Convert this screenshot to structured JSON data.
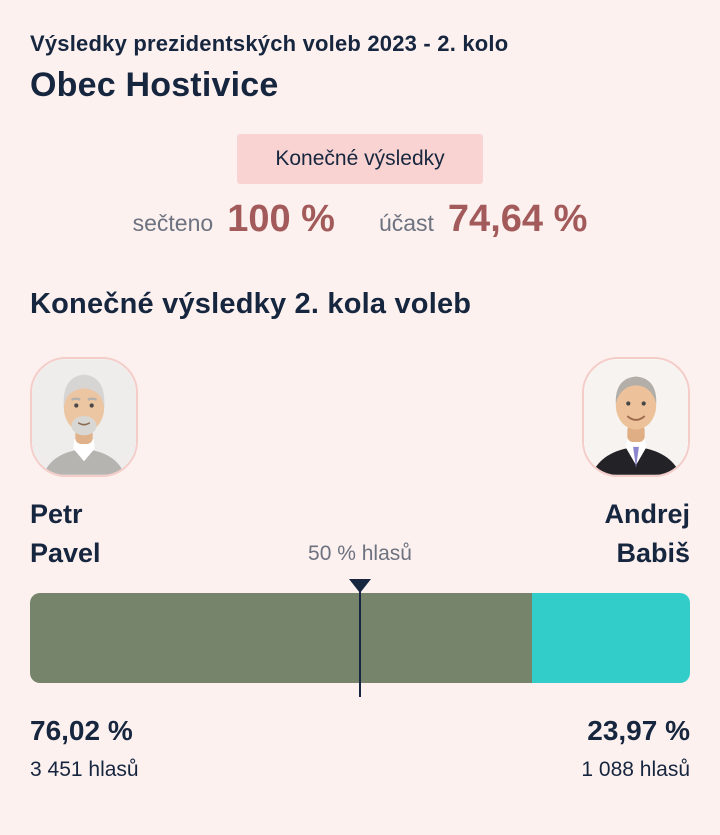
{
  "colors": {
    "page_bg": "#fcf1ef",
    "navy_text": "#17263f",
    "gray_label": "#6d7280",
    "maroon_value": "#a25a5a",
    "badge_bg": "#f9d3d1",
    "pavel_bar": "#75846b",
    "babis_bar": "#33cdc9",
    "avatar_border": "#f4cdc9"
  },
  "header": {
    "subtitle": "Výsledky prezidentských voleb 2023 - 2. kolo",
    "municipality": "Obec Hostivice",
    "badge_label": "Konečné výsledky"
  },
  "stats": {
    "counted_label": "sečteno",
    "counted_value": "100 %",
    "turnout_label": "účast",
    "turnout_value": "74,64 %"
  },
  "results": {
    "heading": "Konečné výsledky 2. kola voleb",
    "threshold_label": "50 % hlasů",
    "candidates": [
      {
        "first_name": "Petr",
        "last_name": "Pavel",
        "percent_label": "76,02 %",
        "votes_label": "3 451 hlasů",
        "share": 76.02,
        "color": "#75846b"
      },
      {
        "first_name": "Andrej",
        "last_name": "Babiš",
        "percent_label": "23,97 %",
        "votes_label": "1 088 hlasů",
        "share": 23.97,
        "color": "#33cdc9"
      }
    ]
  },
  "chart_data": {
    "type": "bar",
    "orientation": "horizontal-stacked",
    "title": "Konečné výsledky 2. kola voleb",
    "categories": [
      "Petr Pavel",
      "Andrej Babiš"
    ],
    "values": [
      76.02,
      23.97
    ],
    "votes": [
      3451,
      1088
    ],
    "value_labels": [
      "76,02 %",
      "23,97 %"
    ],
    "votes_labels": [
      "3 451 hlasů",
      "1 088 hlasů"
    ],
    "colors": [
      "#75846b",
      "#33cdc9"
    ],
    "threshold_annotation": "50 % hlasů",
    "threshold_value": 50,
    "counted_percent": 100,
    "turnout_percent": 74.64,
    "xlim": [
      0,
      100
    ],
    "grid": false,
    "legend_position": "none"
  }
}
